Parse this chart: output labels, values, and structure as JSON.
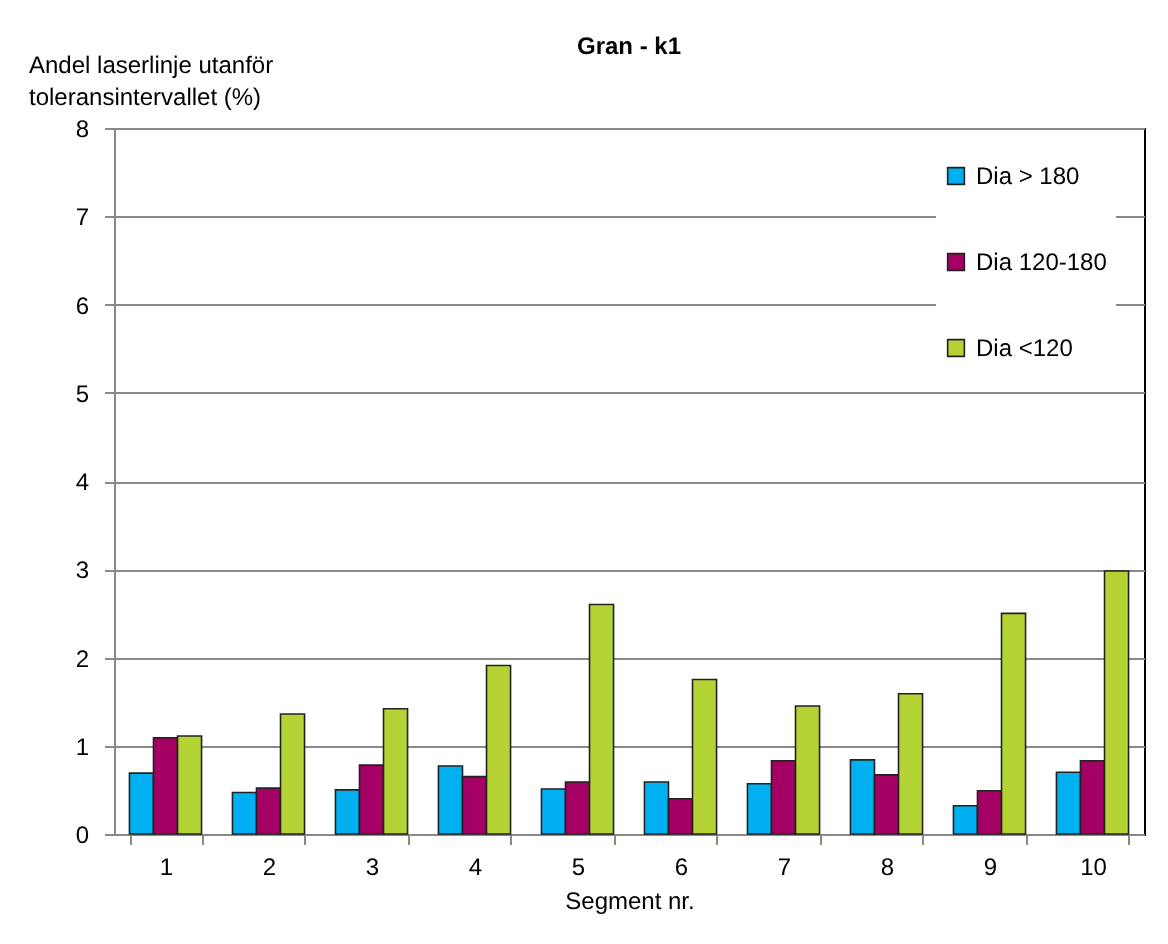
{
  "chart_data": {
    "type": "bar",
    "title": "Gran - k1",
    "xlabel": "Segment nr.",
    "ylabel": "Andel laserlinje utanför toleransintervallet (%)",
    "categories": [
      "1",
      "2",
      "3",
      "4",
      "5",
      "6",
      "7",
      "8",
      "9",
      "10"
    ],
    "series": [
      {
        "name": "Dia > 180",
        "color": "#00b0f0",
        "values": [
          0.69,
          0.47,
          0.5,
          0.77,
          0.51,
          0.59,
          0.57,
          0.84,
          0.32,
          0.7
        ]
      },
      {
        "name": "Dia 120-180",
        "color": "#a50064",
        "values": [
          1.09,
          0.52,
          0.78,
          0.65,
          0.59,
          0.4,
          0.83,
          0.67,
          0.49,
          0.83
        ]
      },
      {
        "name": "Dia <120",
        "color": "#b5d334",
        "values": [
          1.11,
          1.36,
          1.42,
          1.91,
          2.6,
          1.75,
          1.45,
          1.59,
          2.5,
          2.98
        ]
      }
    ],
    "ylim": [
      0,
      8
    ],
    "yticks": [
      0,
      1,
      2,
      3,
      4,
      5,
      6,
      7,
      8
    ],
    "grid": "y",
    "legend": "top right"
  }
}
